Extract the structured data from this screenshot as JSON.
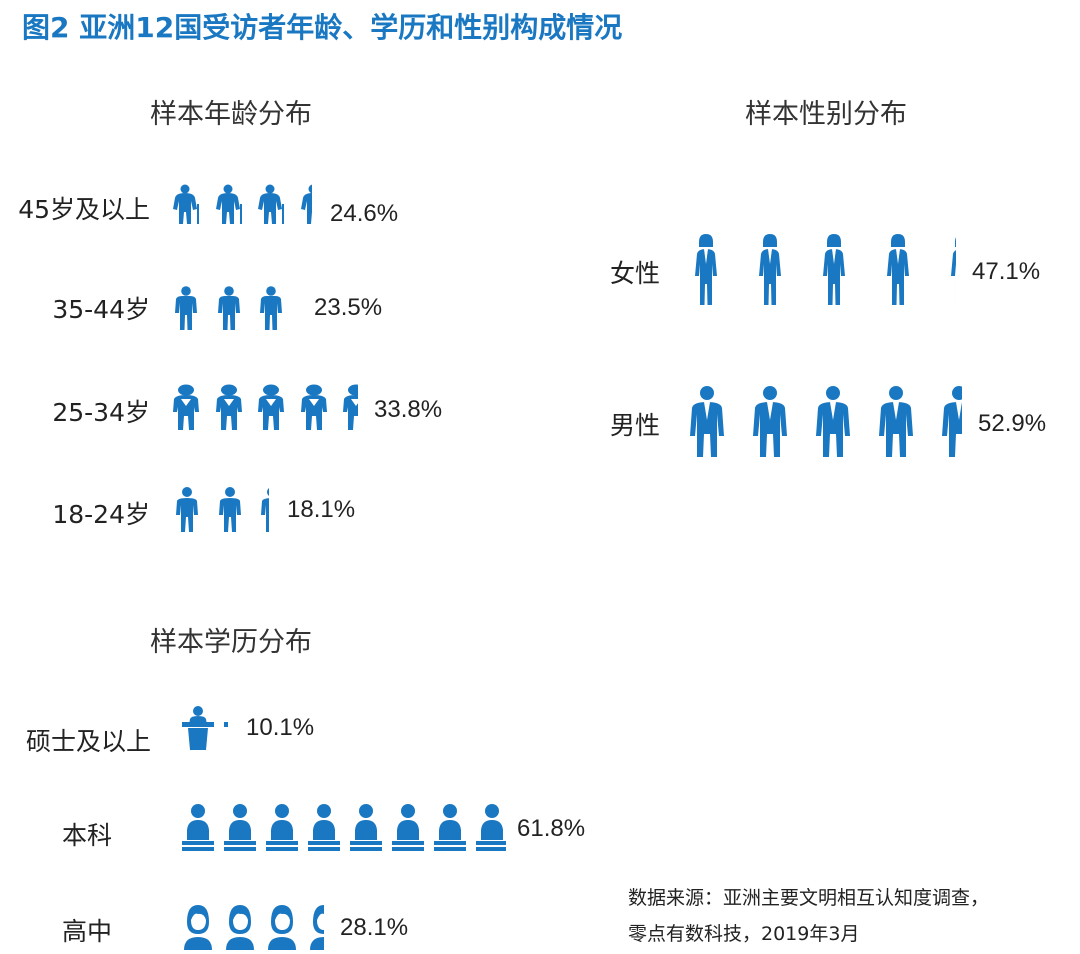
{
  "title": "图2  亚洲12国受访者年龄、学历和性别构成情况",
  "source": {
    "line1": "数据来源：亚洲主要文明相互认知度调查，",
    "line2": "零点有数科技，2019年3月"
  },
  "colors": {
    "icon": "#1a78c2",
    "title": "#1a78c2"
  },
  "chart_data": [
    {
      "type": "pictograph",
      "title": "样本年龄分布",
      "categories": [
        "45岁及以上",
        "35-44岁",
        "25-34岁",
        "18-24岁"
      ],
      "values": [
        24.6,
        23.5,
        33.8,
        18.1
      ],
      "value_labels": [
        "24.6%",
        "23.5%",
        "33.8%",
        "18.1%"
      ],
      "icons": [
        "elderly-person-icon",
        "middle-aged-man-icon",
        "young-adult-icon",
        "youth-icon"
      ]
    },
    {
      "type": "pictograph",
      "title": "样本性别分布",
      "categories": [
        "女性",
        "男性"
      ],
      "values": [
        47.1,
        52.9
      ],
      "value_labels": [
        "47.1%",
        "52.9%"
      ],
      "icons": [
        "woman-icon",
        "man-icon"
      ]
    },
    {
      "type": "pictograph",
      "title": "样本学历分布",
      "categories": [
        "硕士及以上",
        "本科",
        "高中"
      ],
      "values": [
        10.1,
        61.8,
        28.1
      ],
      "value_labels": [
        "10.1%",
        "61.8%",
        "28.1%"
      ],
      "icons": [
        "lecturer-icon",
        "desk-student-icon",
        "student-bust-icon"
      ]
    }
  ]
}
